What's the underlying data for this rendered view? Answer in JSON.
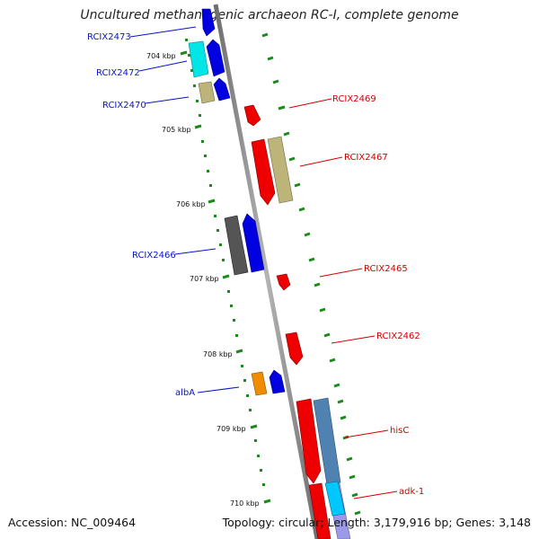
{
  "title": "Uncultured methanogenic archaeon RC-I, complete genome",
  "footer": {
    "accession": "Accession: NC_009464",
    "stats": "Topology: circular; Length: 3,179,916 bp; Genes: 3,148"
  },
  "colors": {
    "forward_label": "#0a14c8",
    "reverse_label": "#d20000",
    "tick": "#1a8a1a",
    "backbone": "#8c8c8c"
  },
  "scale_labels": [
    "704 kbp",
    "705 kbp",
    "706 kbp",
    "707 kbp",
    "708 kbp",
    "709 kbp",
    "710 kbp"
  ],
  "forward_genes": [
    "RCIX2473",
    "RCIX2472",
    "RCIX2470",
    "RCIX2466",
    "albA"
  ],
  "reverse_genes": [
    "RCIX2469",
    "RCIX2467",
    "RCIX2465",
    "RCIX2462",
    "hisC",
    "adk-1"
  ]
}
